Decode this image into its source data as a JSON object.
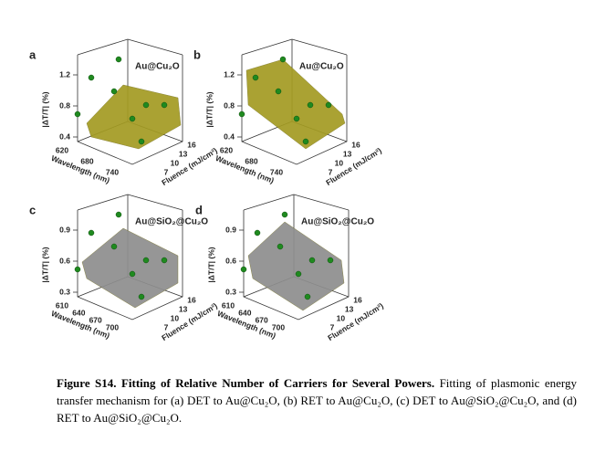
{
  "panels": [
    {
      "label": "a",
      "legend": "Au@Cu₂O",
      "z_axis_label": "|ΔT/T| (%)",
      "z_ticks": [
        "1.2",
        "0.8",
        "0.4"
      ],
      "x_axis_label": "Wavelength (nm)",
      "x_ticks": [
        "620",
        "680",
        "740"
      ],
      "y_axis_label": "Fluence (mJ/cm²)",
      "y_ticks": [
        "16",
        "13",
        "10",
        "7"
      ]
    },
    {
      "label": "b",
      "legend": "Au@Cu₂O",
      "z_axis_label": "|ΔT/T| (%)",
      "z_ticks": [
        "1.2",
        "0.8",
        "0.4"
      ],
      "x_axis_label": "Wavelength (nm)",
      "x_ticks": [
        "620",
        "680",
        "740"
      ],
      "y_axis_label": "Fluence (mJ/cm²)",
      "y_ticks": [
        "16",
        "13",
        "10",
        "7"
      ]
    },
    {
      "label": "c",
      "legend": "Au@SiO₂@Cu₂O",
      "z_axis_label": "|ΔT/T| (%)",
      "z_ticks": [
        "0.9",
        "0.6",
        "0.3"
      ],
      "x_axis_label": "Wavelength (nm)",
      "x_ticks": [
        "610",
        "640",
        "670",
        "700"
      ],
      "y_axis_label": "Fluence (mJ/cm²)",
      "y_ticks": [
        "16",
        "13",
        "10",
        "7"
      ]
    },
    {
      "label": "d",
      "legend": "Au@SiO₂@Cu₂O",
      "z_axis_label": "|ΔT/T| (%)",
      "z_ticks": [
        "0.9",
        "0.6",
        "0.3"
      ],
      "x_axis_label": "Wavelength (nm)",
      "x_ticks": [
        "610",
        "640",
        "670",
        "700"
      ],
      "y_axis_label": "Fluence (mJ/cm²)",
      "y_ticks": [
        "16",
        "13",
        "10",
        "7"
      ]
    }
  ],
  "caption": {
    "bold": "Figure S14. Fitting of Relative Number of Carriers for Several Powers.",
    "text": " Fitting of plasmonic energy transfer mechanism for (a) DET to Au@Cu₂O, (b) RET to Au@Cu₂O, (c) DET to Au@SiO₂@Cu₂O, and (d) RET to Au@SiO₂@Cu₂O."
  }
}
